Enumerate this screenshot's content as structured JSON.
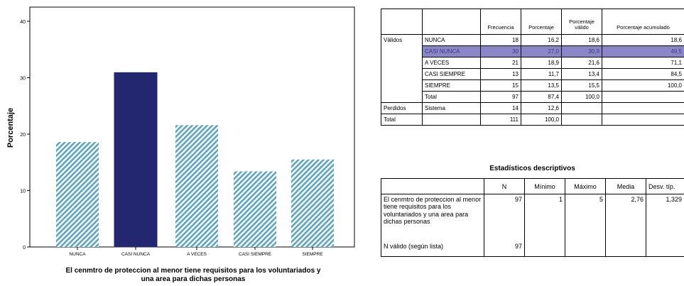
{
  "chart_data": {
    "type": "bar",
    "categories": [
      "NUNCA",
      "CASI NUNCA",
      "A VECES",
      "CASI SIEMPRE",
      "SIEMPRE"
    ],
    "values": [
      18.6,
      30.9,
      21.6,
      13.4,
      15.5
    ],
    "ylabel": "Porcentaje",
    "xlabel": "El cenmtro de proteccion al menor tiene requisitos para los voluntariados y una area para dichas personas",
    "xlabel_lines": [
      "El cenmtro de proteccion al menor tiene requisitos para los voluntariados y",
      "una area para dichas personas"
    ],
    "ylim": [
      0,
      40
    ],
    "yticks": [
      "0",
      "10",
      "20",
      "30",
      "40"
    ],
    "highlight_index": 1,
    "colors": {
      "hatch": "#5aa5c4",
      "highlight": "#232770",
      "frame": "#000000"
    },
    "grid": false
  },
  "freq_table": {
    "headers": [
      "",
      "",
      "Frecuencia",
      "Porcentaje",
      "Porcentaje válido",
      "Porcentaje acumulado"
    ],
    "rows": [
      {
        "group": "Válidos",
        "label": "NUNCA",
        "freq": "18",
        "pct": "16,2",
        "valid": "18,6",
        "cum": "18,6"
      },
      {
        "group": "",
        "label": "CASI NUNCA",
        "freq": "30",
        "pct": "27,0",
        "valid": "30,9",
        "cum": "49,5"
      },
      {
        "group": "",
        "label": "A VECES",
        "freq": "21",
        "pct": "18,9",
        "valid": "21,6",
        "cum": "71,1"
      },
      {
        "group": "",
        "label": "CASI SIEMPRE",
        "freq": "13",
        "pct": "11,7",
        "valid": "13,4",
        "cum": "84,5"
      },
      {
        "group": "",
        "label": "SIEMPRE",
        "freq": "15",
        "pct": "13,5",
        "valid": "15,5",
        "cum": "100,0"
      },
      {
        "group": "",
        "label": "Total",
        "freq": "97",
        "pct": "87,4",
        "valid": "100,0",
        "cum": ""
      },
      {
        "group": "Perdidos",
        "label": "Sistema",
        "freq": "14",
        "pct": "12,6",
        "valid": "",
        "cum": ""
      },
      {
        "group": "Total",
        "label": "",
        "freq": "111",
        "pct": "100,0",
        "valid": "",
        "cum": ""
      }
    ],
    "highlight_row": 1,
    "highlight_color": "#8a87c8"
  },
  "desc_stats": {
    "title": "Estadísticos descriptivos",
    "headers": [
      "",
      "N",
      "Mínimo",
      "Máximo",
      "Media",
      "Desv. típ."
    ],
    "row1": {
      "label": "El cenmtro de proteccion al menor tiene requisitos para los voluntariados y una area para dichas personas",
      "n": "97",
      "min": "1",
      "max": "5",
      "mean": "2,76",
      "sd": "1,329"
    },
    "row2": {
      "label": "N válido (según lista)",
      "n": "97"
    }
  }
}
